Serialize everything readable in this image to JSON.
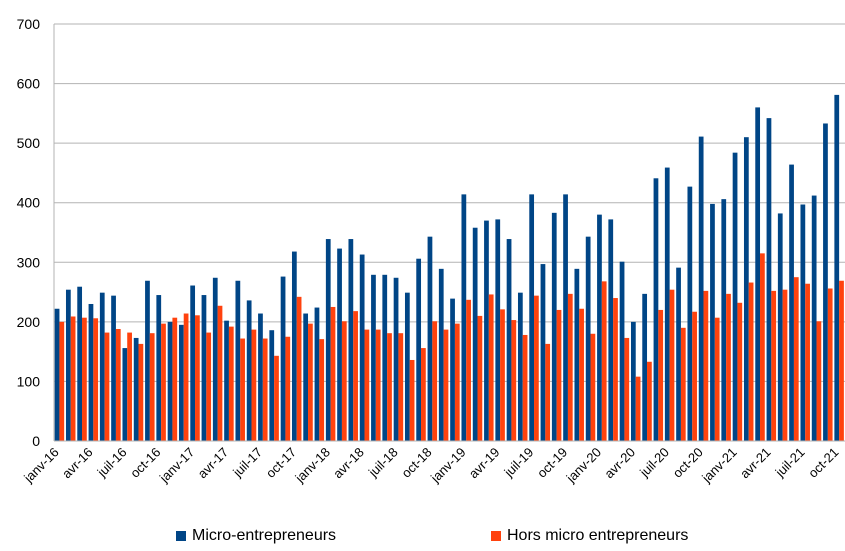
{
  "chart_data": {
    "type": "bar",
    "title": "",
    "xlabel": "",
    "ylabel": "",
    "ylim": [
      0,
      700
    ],
    "yticks": [
      0,
      100,
      200,
      300,
      400,
      500,
      600,
      700
    ],
    "grid": true,
    "legend_position": "bottom",
    "categories": [
      "janv-16",
      "févr-16",
      "mars-16",
      "avr-16",
      "mai-16",
      "juin-16",
      "juil-16",
      "août-16",
      "sept-16",
      "oct-16",
      "nov-16",
      "déc-16",
      "janv-17",
      "févr-17",
      "mars-17",
      "avr-17",
      "mai-17",
      "juin-17",
      "juil-17",
      "août-17",
      "sept-17",
      "oct-17",
      "nov-17",
      "déc-17",
      "janv-18",
      "févr-18",
      "mars-18",
      "avr-18",
      "mai-18",
      "juin-18",
      "juil-18",
      "août-18",
      "sept-18",
      "oct-18",
      "nov-18",
      "déc-18",
      "janv-19",
      "févr-19",
      "mars-19",
      "avr-19",
      "mai-19",
      "juin-19",
      "juil-19",
      "août-19",
      "sept-19",
      "oct-19",
      "nov-19",
      "déc-19",
      "janv-20",
      "févr-20",
      "mars-20",
      "avr-20",
      "mai-20",
      "juin-20",
      "juil-20",
      "août-20",
      "sept-20",
      "oct-20",
      "nov-20",
      "déc-20",
      "janv-21",
      "févr-21",
      "mars-21",
      "avr-21",
      "mai-21",
      "juin-21",
      "juil-21",
      "août-21",
      "sept-21",
      "oct-21"
    ],
    "x_tick_labels": [
      {
        "index": 0,
        "label": "janv-16"
      },
      {
        "index": 3,
        "label": "avr-16"
      },
      {
        "index": 6,
        "label": "juil-16"
      },
      {
        "index": 9,
        "label": "oct-16"
      },
      {
        "index": 12,
        "label": "janv-17"
      },
      {
        "index": 15,
        "label": "avr-17"
      },
      {
        "index": 18,
        "label": "juil-17"
      },
      {
        "index": 21,
        "label": "oct-17"
      },
      {
        "index": 24,
        "label": "janv-18"
      },
      {
        "index": 27,
        "label": "avr-18"
      },
      {
        "index": 30,
        "label": "juil-18"
      },
      {
        "index": 33,
        "label": "oct-18"
      },
      {
        "index": 36,
        "label": "janv-19"
      },
      {
        "index": 39,
        "label": "avr-19"
      },
      {
        "index": 42,
        "label": "juil-19"
      },
      {
        "index": 45,
        "label": "oct-19"
      },
      {
        "index": 48,
        "label": "janv-20"
      },
      {
        "index": 51,
        "label": "avr-20"
      },
      {
        "index": 54,
        "label": "juil-20"
      },
      {
        "index": 57,
        "label": "oct-20"
      },
      {
        "index": 60,
        "label": "janv-21"
      },
      {
        "index": 63,
        "label": "avr-21"
      },
      {
        "index": 66,
        "label": "juil-21"
      },
      {
        "index": 69,
        "label": "oct-21"
      }
    ],
    "series": [
      {
        "name": "Micro-entrepreneurs",
        "color": "#004586",
        "values": [
          222,
          254,
          259,
          230,
          249,
          244,
          156,
          173,
          269,
          245,
          200,
          195,
          261,
          245,
          274,
          202,
          269,
          236,
          214,
          186,
          276,
          318,
          214,
          224,
          339,
          323,
          339,
          313,
          279,
          279,
          274,
          249,
          306,
          343,
          289,
          239,
          414,
          358,
          370,
          372,
          339,
          249,
          414,
          297,
          383,
          414,
          289,
          343,
          380,
          372,
          301,
          200,
          247,
          441,
          459,
          291,
          427,
          511,
          398,
          406,
          484,
          510,
          560,
          542,
          382,
          464,
          397,
          412,
          533,
          581
        ]
      },
      {
        "name": "Hors micro entrepreneurs",
        "color": "#ff420e",
        "values": [
          200,
          209,
          207,
          206,
          182,
          188,
          182,
          163,
          181,
          197,
          207,
          214,
          211,
          182,
          227,
          192,
          172,
          187,
          172,
          143,
          175,
          242,
          197,
          171,
          225,
          201,
          218,
          187,
          187,
          181,
          181,
          136,
          156,
          201,
          187,
          197,
          237,
          210,
          246,
          221,
          203,
          178,
          244,
          163,
          220,
          247,
          222,
          180,
          268,
          240,
          173,
          108,
          133,
          220,
          254,
          190,
          217,
          252,
          207,
          247,
          232,
          266,
          315,
          252,
          254,
          275,
          264,
          201,
          256,
          269
        ]
      }
    ]
  }
}
